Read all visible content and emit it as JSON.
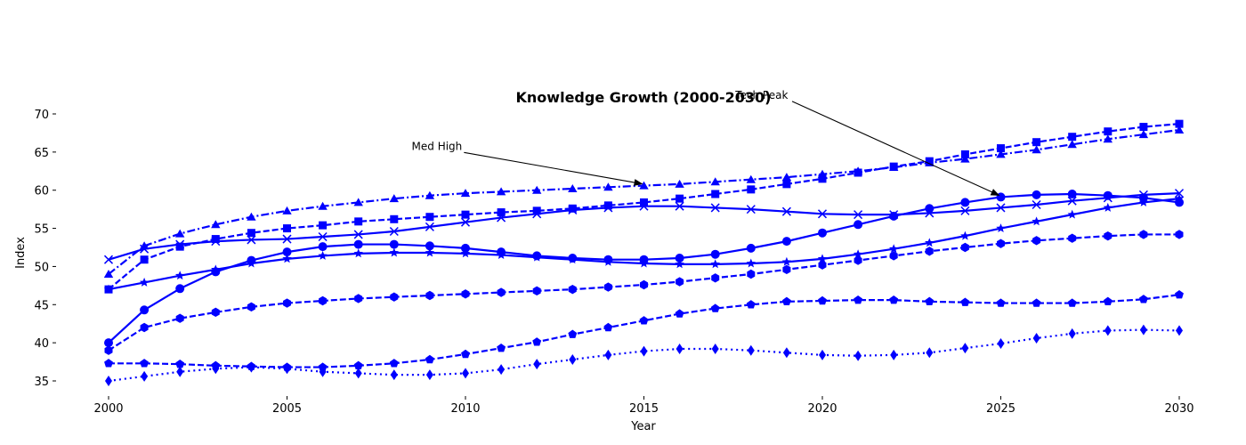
{
  "chart_data": {
    "type": "line",
    "title": "Knowledge Growth (2000-2030)",
    "xlabel": "Year",
    "ylabel": "Index",
    "xlim": [
      2000,
      2030
    ],
    "ylim": [
      34,
      71
    ],
    "x_ticks": [
      2000,
      2005,
      2010,
      2015,
      2020,
      2025,
      2030
    ],
    "y_ticks": [
      35,
      40,
      45,
      50,
      55,
      60,
      65,
      70
    ],
    "grid": false,
    "color": "#0000ff",
    "x": [
      2000,
      2001,
      2002,
      2003,
      2004,
      2005,
      2006,
      2007,
      2008,
      2009,
      2010,
      2011,
      2012,
      2013,
      2014,
      2015,
      2016,
      2017,
      2018,
      2019,
      2020,
      2021,
      2022,
      2023,
      2024,
      2025,
      2026,
      2027,
      2028,
      2029,
      2030
    ],
    "series": [
      {
        "marker": "circle",
        "linestyle": "solid",
        "values": [
          40.0,
          44.3,
          47.1,
          49.3,
          50.8,
          51.9,
          52.6,
          52.9,
          52.9,
          52.7,
          52.4,
          51.9,
          51.4,
          51.1,
          50.9,
          50.9,
          51.1,
          51.6,
          52.4,
          53.3,
          54.4,
          55.5,
          56.6,
          57.6,
          58.4,
          59.1,
          59.4,
          59.5,
          59.3,
          59.0,
          58.4
        ]
      },
      {
        "marker": "x",
        "linestyle": "solid",
        "values": [
          50.9,
          52.3,
          52.9,
          53.3,
          53.5,
          53.6,
          53.9,
          54.2,
          54.6,
          55.2,
          55.8,
          56.4,
          56.9,
          57.4,
          57.7,
          57.9,
          57.9,
          57.7,
          57.5,
          57.2,
          56.9,
          56.8,
          56.8,
          57.0,
          57.3,
          57.7,
          58.1,
          58.6,
          59.0,
          59.4,
          59.6
        ]
      },
      {
        "marker": "star",
        "linestyle": "solid",
        "values": [
          47.0,
          47.9,
          48.8,
          49.6,
          50.4,
          51.0,
          51.4,
          51.7,
          51.8,
          51.8,
          51.7,
          51.5,
          51.2,
          50.9,
          50.6,
          50.4,
          50.3,
          50.3,
          50.4,
          50.6,
          51.0,
          51.6,
          52.3,
          53.1,
          54.0,
          55.0,
          55.9,
          56.8,
          57.7,
          58.4,
          58.9
        ]
      },
      {
        "marker": "triangle",
        "linestyle": "dashdot",
        "values": [
          49.0,
          52.7,
          54.3,
          55.5,
          56.5,
          57.3,
          57.9,
          58.4,
          58.9,
          59.3,
          59.6,
          59.8,
          60.0,
          60.2,
          60.4,
          60.6,
          60.8,
          61.1,
          61.4,
          61.7,
          62.1,
          62.5,
          63.0,
          63.6,
          64.1,
          64.7,
          65.3,
          66.0,
          66.7,
          67.3,
          67.9
        ]
      },
      {
        "marker": "square",
        "linestyle": "dashed",
        "values": [
          47.0,
          50.9,
          52.6,
          53.6,
          54.4,
          55.0,
          55.4,
          55.9,
          56.2,
          56.5,
          56.8,
          57.1,
          57.3,
          57.6,
          58.0,
          58.4,
          58.9,
          59.5,
          60.1,
          60.8,
          61.5,
          62.3,
          63.1,
          63.8,
          64.7,
          65.5,
          66.3,
          67.0,
          67.7,
          68.3,
          68.7
        ]
      },
      {
        "marker": "hexagon",
        "linestyle": "dashed",
        "values": [
          39.0,
          42.0,
          43.2,
          44.0,
          44.7,
          45.2,
          45.5,
          45.8,
          46.0,
          46.2,
          46.4,
          46.6,
          46.8,
          47.0,
          47.3,
          47.6,
          48.0,
          48.5,
          49.0,
          49.6,
          50.2,
          50.8,
          51.4,
          52.0,
          52.5,
          53.0,
          53.4,
          53.7,
          54.0,
          54.2,
          54.2
        ]
      },
      {
        "marker": "pentagon",
        "linestyle": "dashed",
        "values": [
          37.3,
          37.3,
          37.2,
          37.0,
          36.9,
          36.8,
          36.8,
          37.0,
          37.3,
          37.8,
          38.5,
          39.3,
          40.1,
          41.1,
          42.0,
          42.9,
          43.8,
          44.5,
          45.0,
          45.4,
          45.5,
          45.6,
          45.6,
          45.4,
          45.3,
          45.2,
          45.2,
          45.2,
          45.4,
          45.7,
          46.3
        ]
      },
      {
        "marker": "diamond",
        "linestyle": "dotted",
        "values": [
          35.0,
          35.6,
          36.2,
          36.6,
          36.8,
          36.6,
          36.2,
          36.0,
          35.8,
          35.8,
          36.0,
          36.5,
          37.2,
          37.8,
          38.4,
          38.9,
          39.2,
          39.2,
          39.0,
          38.7,
          38.4,
          38.3,
          38.4,
          38.7,
          39.3,
          39.9,
          40.6,
          41.2,
          41.6,
          41.7,
          41.6
        ]
      }
    ],
    "annotations": [
      {
        "text": "Tech Peak",
        "x": 2025,
        "y": 59.1,
        "text_x": 2018.3,
        "text_y": 72.0
      },
      {
        "text": "Med High",
        "x": 2015,
        "y": 60.6,
        "text_x": 2009.2,
        "text_y": 65.3
      }
    ]
  }
}
